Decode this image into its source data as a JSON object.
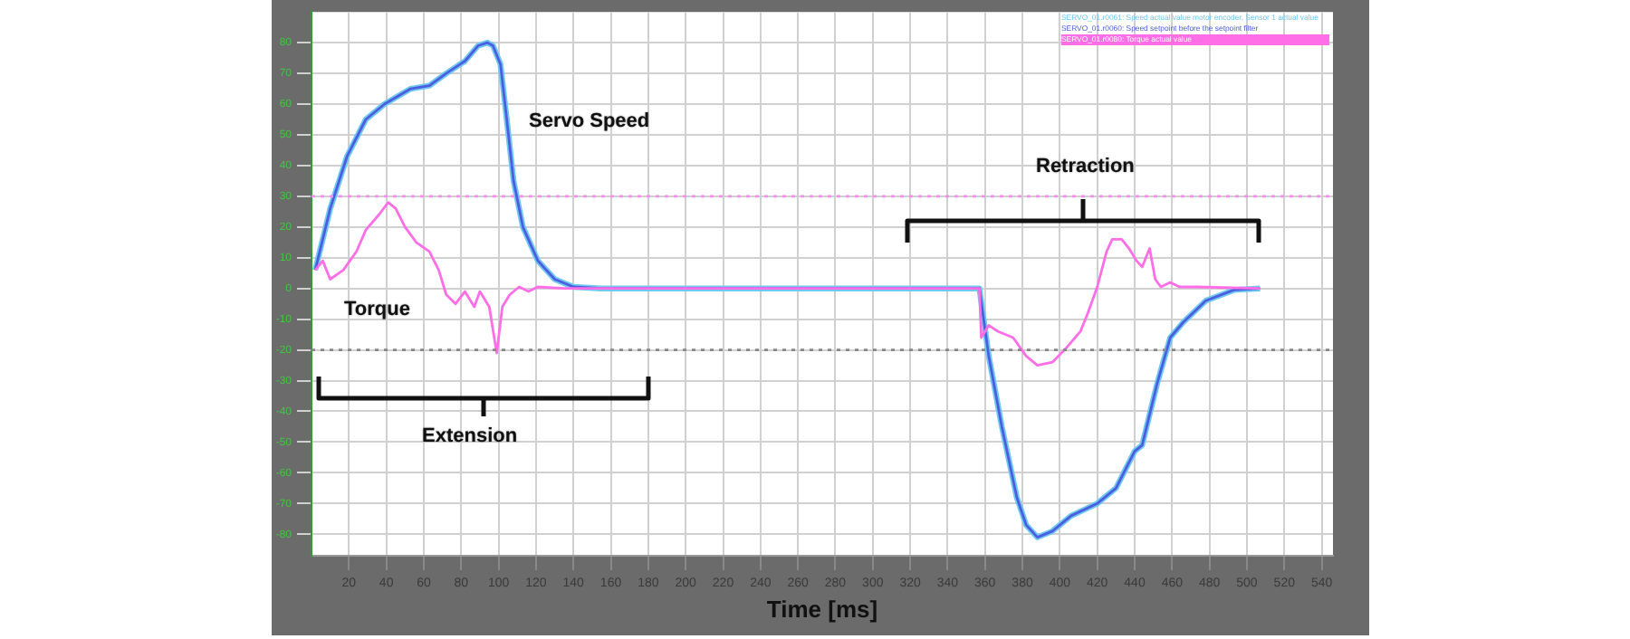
{
  "chart_data": {
    "type": "line",
    "xlabel": "Time [ms]",
    "xlim": [
      0,
      546
    ],
    "xticks": [
      20,
      40,
      60,
      80,
      100,
      120,
      140,
      160,
      180,
      200,
      220,
      240,
      260,
      280,
      300,
      320,
      340,
      360,
      380,
      400,
      420,
      440,
      460,
      480,
      500,
      520,
      540
    ],
    "ylim": [
      -87,
      90
    ],
    "yticks": [
      -80,
      -70,
      -60,
      -50,
      -40,
      -30,
      -20,
      -10,
      0,
      10,
      20,
      30,
      40,
      50,
      60,
      70,
      80
    ],
    "grid": true,
    "legend": "top right",
    "marker": "none",
    "line_style": "solid",
    "series": [
      {
        "name": "SERVO_01.r0061: Speed actual value motor encoder, Sensor 1 actual value",
        "color": "#6fc8f0",
        "x": [
          2,
          10,
          19,
          29,
          39,
          53,
          63,
          72,
          82,
          89,
          94,
          97,
          101,
          104,
          108,
          113,
          121,
          130,
          140,
          155,
          357,
          362,
          369,
          377,
          382,
          388,
          396,
          406,
          420,
          430,
          440,
          444,
          452,
          459,
          466,
          478,
          493,
          507
        ],
        "values": [
          6,
          26,
          43,
          55,
          60,
          65,
          66,
          70,
          74,
          79,
          80,
          79,
          73,
          57,
          35,
          20,
          9,
          3,
          0.5,
          0,
          0,
          -22,
          -45,
          -68,
          -77,
          -81,
          -79,
          -74,
          -70,
          -65,
          -53,
          -51,
          -31,
          -16,
          -11,
          -4,
          -0.5,
          0
        ]
      },
      {
        "name": "SERVO_01.r0060: Speed setpoint before the setpoint filter",
        "color": "#4b5ee0",
        "x": [
          2,
          10,
          19,
          29,
          39,
          53,
          63,
          72,
          82,
          89,
          94,
          97,
          101,
          104,
          108,
          113,
          121,
          130,
          140,
          155,
          357,
          362,
          369,
          377,
          382,
          388,
          396,
          406,
          420,
          430,
          440,
          444,
          452,
          459,
          466,
          478,
          493,
          507
        ],
        "values": [
          6,
          26,
          43,
          55,
          60,
          65,
          66,
          70,
          74,
          79,
          80,
          79,
          73,
          57,
          35,
          20,
          9,
          3,
          0.5,
          0,
          0,
          -22,
          -45,
          -68,
          -77,
          -81,
          -79,
          -74,
          -70,
          -65,
          -53,
          -51,
          -31,
          -16,
          -11,
          -4,
          -0.5,
          0
        ]
      },
      {
        "name": "SERVO_01.r0080: Torque actual value",
        "color": "#ff6ee6",
        "x": [
          2,
          6,
          10,
          17,
          24,
          29,
          36,
          41,
          45,
          50,
          56,
          63,
          68,
          72,
          77,
          82,
          87,
          90,
          95,
          99,
          102,
          106,
          111,
          116,
          121,
          135,
          357,
          358,
          362,
          367,
          375,
          382,
          388,
          396,
          404,
          411,
          415,
          420,
          425,
          428,
          433,
          437,
          441,
          444,
          448,
          451,
          454,
          459,
          464,
          473,
          507
        ],
        "values": [
          6,
          9,
          3,
          6,
          12,
          19,
          24,
          28,
          26,
          20,
          15,
          12,
          6,
          -2,
          -5,
          -1,
          -6,
          -1,
          -6,
          -21,
          -6,
          -2,
          0.5,
          -1,
          0.5,
          0,
          0,
          -16,
          -12,
          -14,
          -16,
          -22,
          -25,
          -24,
          -19,
          -14,
          -8,
          0.5,
          12,
          16,
          16,
          13,
          9,
          7,
          13,
          3,
          0.5,
          2,
          0.5,
          0.5,
          0
        ]
      }
    ],
    "ref_lines": [
      {
        "axis": "y",
        "value": 30,
        "color": "#ff8cf0",
        "line_style": "dotted"
      },
      {
        "axis": "y",
        "value": -20,
        "color": "#888888",
        "line_style": "dotted"
      }
    ],
    "annotations": [
      "Servo Speed",
      "Torque",
      "Extension",
      "Retraction"
    ]
  }
}
